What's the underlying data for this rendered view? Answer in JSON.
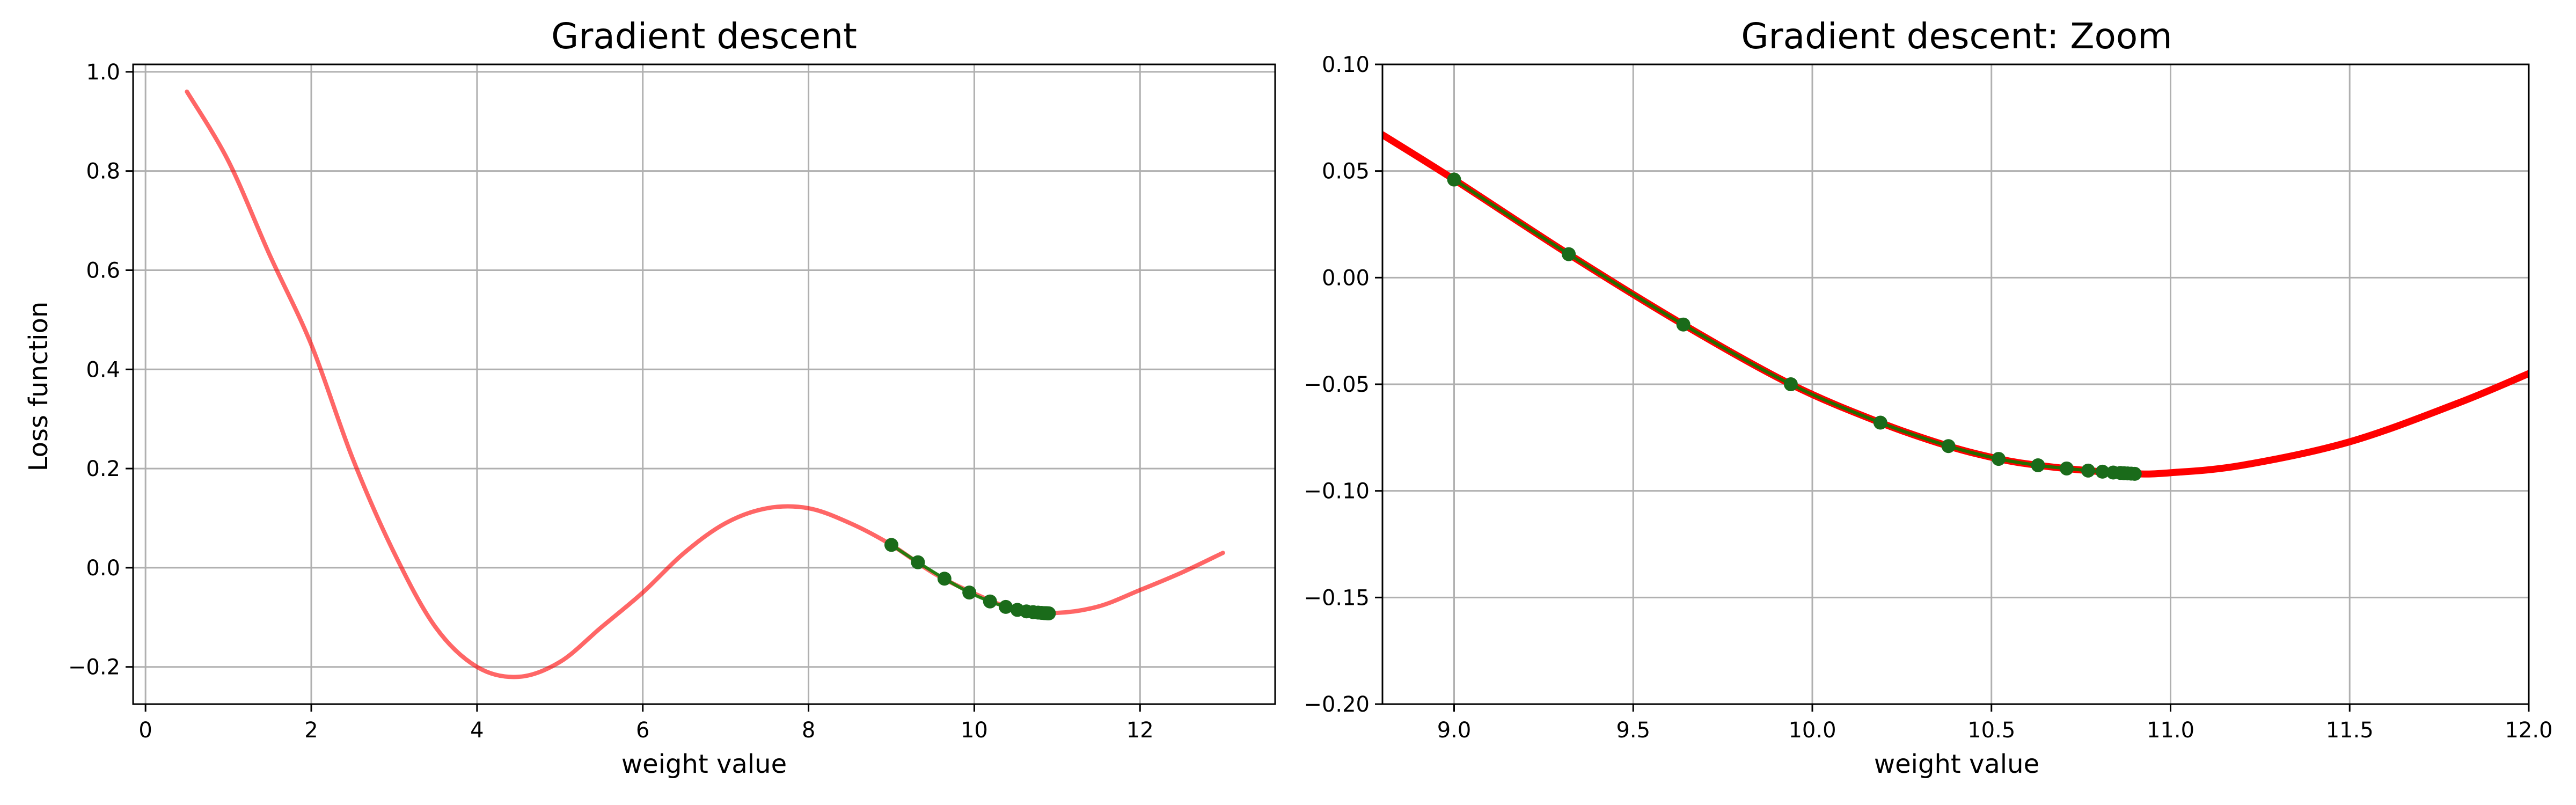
{
  "chart_data": [
    {
      "type": "line",
      "title": "Gradient descent",
      "xlabel": "weight value",
      "ylabel": "Loss function",
      "xlim": [
        -0.15,
        13.63
      ],
      "ylim": [
        -0.275,
        1.015
      ],
      "xticks": [
        0,
        2,
        4,
        6,
        8,
        10,
        12
      ],
      "xtick_labels": [
        "0",
        "2",
        "4",
        "6",
        "8",
        "10",
        "12"
      ],
      "yticks": [
        -0.2,
        0.0,
        0.2,
        0.4,
        0.6,
        0.8,
        1.0
      ],
      "ytick_labels": [
        "−0.2",
        "0.0",
        "0.2",
        "0.4",
        "0.6",
        "0.8",
        "1.0"
      ],
      "grid": true,
      "series": [
        {
          "style": "curve",
          "color": "#ff0000",
          "opacity": 0.6,
          "x": [
            0.5,
            1.0,
            1.5,
            2.0,
            2.5,
            3.0,
            3.5,
            4.0,
            4.5,
            5.0,
            5.5,
            6.0,
            6.5,
            7.0,
            7.5,
            8.0,
            8.5,
            9.0,
            9.5,
            10.0,
            10.5,
            11.0,
            11.5,
            12.0,
            12.5,
            13.0
          ],
          "y": [
            0.96,
            0.82,
            0.63,
            0.45,
            0.22,
            0.03,
            -0.12,
            -0.2,
            -0.22,
            -0.19,
            -0.12,
            -0.05,
            0.03,
            0.09,
            0.12,
            0.12,
            0.09,
            0.046,
            -0.01,
            -0.052,
            -0.084,
            -0.091,
            -0.078,
            -0.045,
            -0.01,
            0.03
          ]
        },
        {
          "style": "path",
          "color": "#008000",
          "marker_color": "#1a6b1a",
          "x": [
            9.0,
            9.32,
            9.64,
            9.94,
            10.19,
            10.38,
            10.52,
            10.63,
            10.71,
            10.77,
            10.81,
            10.84,
            10.86,
            10.87,
            10.88,
            10.89,
            10.9
          ],
          "y": [
            0.046,
            0.011,
            -0.022,
            -0.05,
            -0.068,
            -0.079,
            -0.085,
            -0.088,
            -0.0895,
            -0.0905,
            -0.091,
            -0.0914,
            -0.0916,
            -0.0917,
            -0.0918,
            -0.0919,
            -0.092
          ]
        }
      ]
    },
    {
      "type": "line",
      "title": "Gradient descent: Zoom",
      "xlabel": "weight value",
      "ylabel": "",
      "xlim": [
        8.8,
        12.0
      ],
      "ylim": [
        -0.2,
        0.1
      ],
      "xticks": [
        9.0,
        9.5,
        10.0,
        10.5,
        11.0,
        11.5,
        12.0
      ],
      "xtick_labels": [
        "9.0",
        "9.5",
        "10.0",
        "10.5",
        "11.0",
        "11.5",
        "12.0"
      ],
      "yticks": [
        -0.2,
        -0.15,
        -0.1,
        -0.05,
        0.0,
        0.05,
        0.1
      ],
      "ytick_labels": [
        "−0.20",
        "−0.15",
        "−0.10",
        "−0.05",
        "0.00",
        "0.05",
        "0.10"
      ],
      "grid": true,
      "series": [
        {
          "style": "curve",
          "color": "#ff0000",
          "opacity": 1.0,
          "x": [
            8.8,
            9.0,
            9.32,
            9.64,
            9.94,
            10.19,
            10.38,
            10.52,
            10.63,
            10.77,
            10.9,
            11.0,
            11.2,
            11.5,
            11.8,
            12.0
          ],
          "y": [
            0.067,
            0.046,
            0.011,
            -0.022,
            -0.05,
            -0.068,
            -0.079,
            -0.085,
            -0.088,
            -0.0905,
            -0.092,
            -0.0915,
            -0.088,
            -0.077,
            -0.059,
            -0.045
          ]
        },
        {
          "style": "path",
          "color": "#008000",
          "marker_color": "#1a6b1a",
          "x": [
            9.0,
            9.32,
            9.64,
            9.94,
            10.19,
            10.38,
            10.52,
            10.63,
            10.71,
            10.77,
            10.81,
            10.84,
            10.86,
            10.87,
            10.88,
            10.89,
            10.9
          ],
          "y": [
            0.046,
            0.011,
            -0.022,
            -0.05,
            -0.068,
            -0.079,
            -0.085,
            -0.088,
            -0.0895,
            -0.0905,
            -0.091,
            -0.0914,
            -0.0916,
            -0.0917,
            -0.0918,
            -0.0919,
            -0.092
          ]
        }
      ]
    }
  ]
}
